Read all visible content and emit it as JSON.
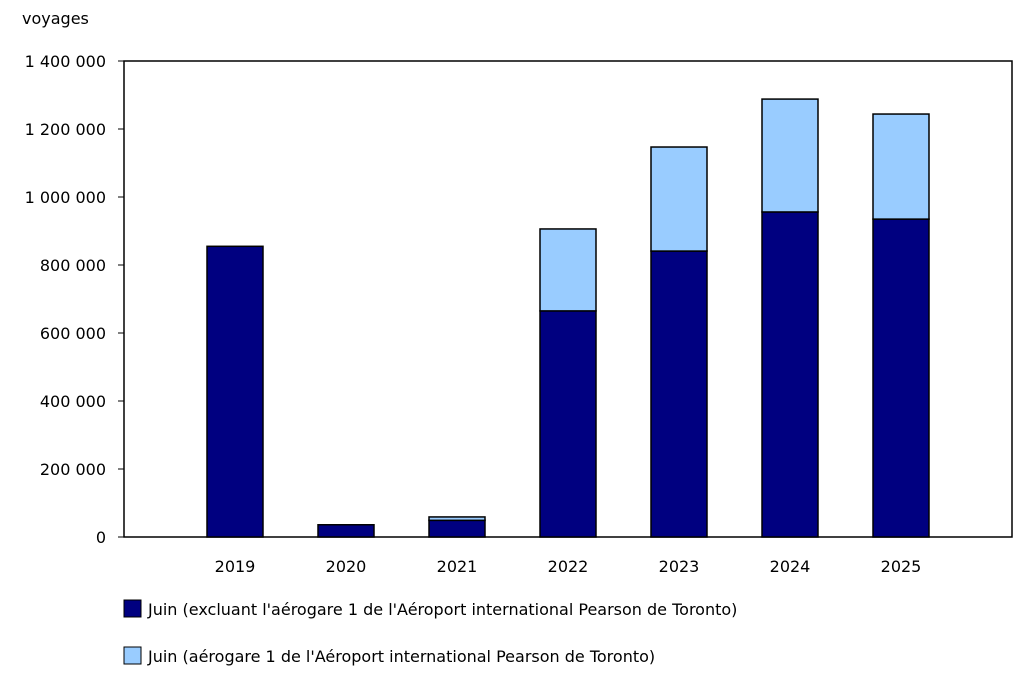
{
  "chart_data": {
    "type": "bar",
    "stacked": true,
    "ylabel": "voyages",
    "ylim": [
      0,
      1400000
    ],
    "yticks": [
      "0",
      "200 000",
      "400 000",
      "600 000",
      "800 000",
      "1 000 000",
      "1 200 000",
      "1 400 000"
    ],
    "ytick_values": [
      0,
      200000,
      400000,
      600000,
      800000,
      1000000,
      1200000,
      1400000
    ],
    "categories": [
      "2019",
      "2020",
      "2021",
      "2022",
      "2023",
      "2024",
      "2025"
    ],
    "grid": false,
    "legend_position": "bottom",
    "series": [
      {
        "name": "Juin (excluant l'aérogare 1 de l'Aéroport international Pearson de Toronto)",
        "color": "#000080",
        "values": [
          855000,
          36000,
          49000,
          665000,
          841000,
          956000,
          935000
        ]
      },
      {
        "name": "Juin (aérogare 1 de l'Aéroport international Pearson de Toronto)",
        "color": "#99ccff",
        "values": [
          0,
          0,
          10000,
          241000,
          306000,
          332000,
          309000
        ]
      }
    ]
  }
}
